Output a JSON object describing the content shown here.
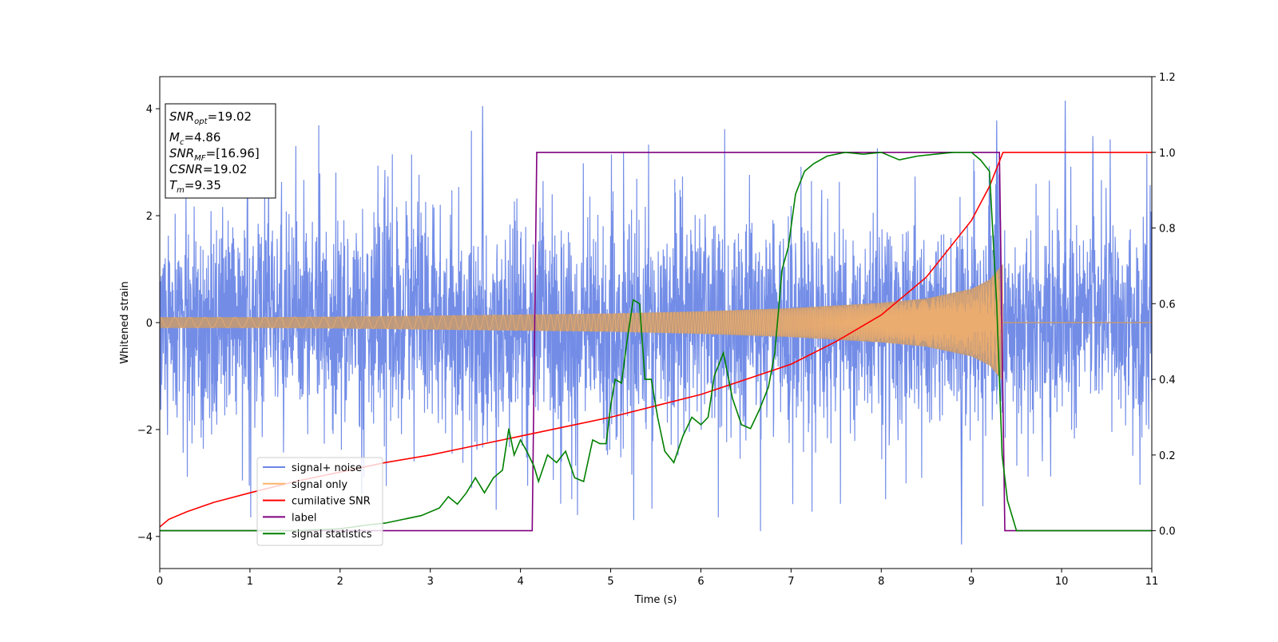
{
  "chart_data": {
    "type": "line",
    "xlabel": "Time (s)",
    "ylabel": "Whitened strain",
    "xlim": [
      0,
      11
    ],
    "ylim_left": [
      -4.6,
      4.6
    ],
    "ylim_right": [
      -0.1,
      1.2
    ],
    "x_ticks": [
      0,
      1,
      2,
      3,
      4,
      5,
      6,
      7,
      8,
      9,
      10,
      11
    ],
    "y_left_ticks": [
      -4,
      -2,
      0,
      2,
      4
    ],
    "y_right_ticks": [
      0.0,
      0.2,
      0.4,
      0.6,
      0.8,
      1.0,
      1.2
    ],
    "y_right_tick_labels": [
      "0.0",
      "0.2",
      "0.4",
      "0.6",
      "0.8",
      "1.0",
      "1.2"
    ],
    "grid": false,
    "legend_placement": "lower-left",
    "info_box": {
      "placement": "top-left",
      "lines": [
        {
          "name": "SNR",
          "sub": "opt",
          "value": "=19.02"
        },
        {
          "name": "M",
          "sub": "c",
          "value": "=4.86"
        },
        {
          "name": "SNR",
          "sub": "MF",
          "value": "=[16.96]"
        },
        {
          "name": "CSNR",
          "sub": "",
          "value": "=19.02"
        },
        {
          "name": "T",
          "sub": "m",
          "value": "=9.35"
        }
      ]
    },
    "series": [
      {
        "name": "signal+ noise",
        "axis": "left",
        "color": "#6b87e6",
        "description_values": {
          "x_range": [
            0,
            11
          ],
          "typical_range": [
            -2.4,
            2.4
          ],
          "spike_max": 4.15,
          "spike_min": -4.15,
          "notable_peaks": [
            [
              3.58,
              4.05
            ],
            [
              10.04,
              4.15
            ],
            [
              9.28,
              3.78
            ],
            [
              8.89,
              -4.15
            ]
          ]
        }
      },
      {
        "name": "signal only",
        "axis": "left",
        "color": "#fdb469",
        "envelope": {
          "x": [
            0,
            1,
            2,
            3,
            4,
            5,
            6,
            7,
            8,
            8.5,
            9.0,
            9.2,
            9.3,
            9.35
          ],
          "amplitude": [
            0.1,
            0.1,
            0.11,
            0.13,
            0.15,
            0.17,
            0.21,
            0.27,
            0.37,
            0.45,
            0.63,
            0.8,
            1.0,
            1.1
          ]
        },
        "after_merger_value": 0
      },
      {
        "name": "cumilative SNR",
        "axis": "right",
        "color": "#ff0000",
        "x": [
          0,
          0.1,
          0.3,
          0.6,
          1,
          1.5,
          2,
          2.5,
          3,
          3.5,
          4,
          4.5,
          5,
          5.5,
          6,
          6.5,
          7,
          7.5,
          8,
          8.5,
          9,
          9.2,
          9.3,
          9.35,
          11
        ],
        "values": [
          0.01,
          0.03,
          0.05,
          0.075,
          0.1,
          0.13,
          0.155,
          0.18,
          0.2,
          0.225,
          0.25,
          0.275,
          0.3,
          0.33,
          0.36,
          0.4,
          0.44,
          0.5,
          0.57,
          0.67,
          0.82,
          0.91,
          0.97,
          1.0,
          1.0
        ]
      },
      {
        "name": "label",
        "axis": "right",
        "color": "#800080",
        "x": [
          0,
          4.13,
          4.18,
          9.31,
          9.37,
          11
        ],
        "values": [
          0.0,
          0.0,
          1.0,
          1.0,
          0.0,
          0.0
        ]
      },
      {
        "name": "signal statistics",
        "axis": "right",
        "color": "#008000",
        "x": [
          0,
          0.5,
          1,
          1.5,
          2,
          2.3,
          2.5,
          2.7,
          2.9,
          3.1,
          3.2,
          3.3,
          3.4,
          3.5,
          3.6,
          3.7,
          3.8,
          3.87,
          3.93,
          4.0,
          4.07,
          4.15,
          4.2,
          4.3,
          4.4,
          4.5,
          4.6,
          4.7,
          4.8,
          4.88,
          4.95,
          5.0,
          5.05,
          5.12,
          5.18,
          5.25,
          5.32,
          5.38,
          5.45,
          5.52,
          5.6,
          5.7,
          5.8,
          5.9,
          6.0,
          6.08,
          6.15,
          6.25,
          6.35,
          6.45,
          6.55,
          6.65,
          6.75,
          6.82,
          6.9,
          6.97,
          7.05,
          7.15,
          7.25,
          7.4,
          7.6,
          7.8,
          8.0,
          8.2,
          8.4,
          8.6,
          8.8,
          9.0,
          9.1,
          9.2,
          9.28,
          9.34,
          9.4,
          9.5,
          9.7,
          10,
          11
        ],
        "values": [
          0.0,
          0.0,
          0.0,
          0.0,
          0.005,
          0.015,
          0.02,
          0.03,
          0.04,
          0.06,
          0.09,
          0.07,
          0.1,
          0.14,
          0.1,
          0.14,
          0.16,
          0.27,
          0.2,
          0.24,
          0.21,
          0.17,
          0.13,
          0.2,
          0.18,
          0.21,
          0.14,
          0.13,
          0.24,
          0.23,
          0.23,
          0.33,
          0.4,
          0.39,
          0.5,
          0.61,
          0.6,
          0.4,
          0.4,
          0.3,
          0.21,
          0.18,
          0.25,
          0.3,
          0.28,
          0.3,
          0.41,
          0.47,
          0.35,
          0.28,
          0.27,
          0.32,
          0.38,
          0.47,
          0.69,
          0.75,
          0.89,
          0.95,
          0.97,
          0.99,
          1.0,
          0.995,
          1.0,
          0.98,
          0.99,
          0.995,
          1.0,
          1.0,
          0.98,
          0.95,
          0.6,
          0.2,
          0.08,
          0.0,
          0.0,
          0.0,
          0.0
        ]
      }
    ]
  }
}
